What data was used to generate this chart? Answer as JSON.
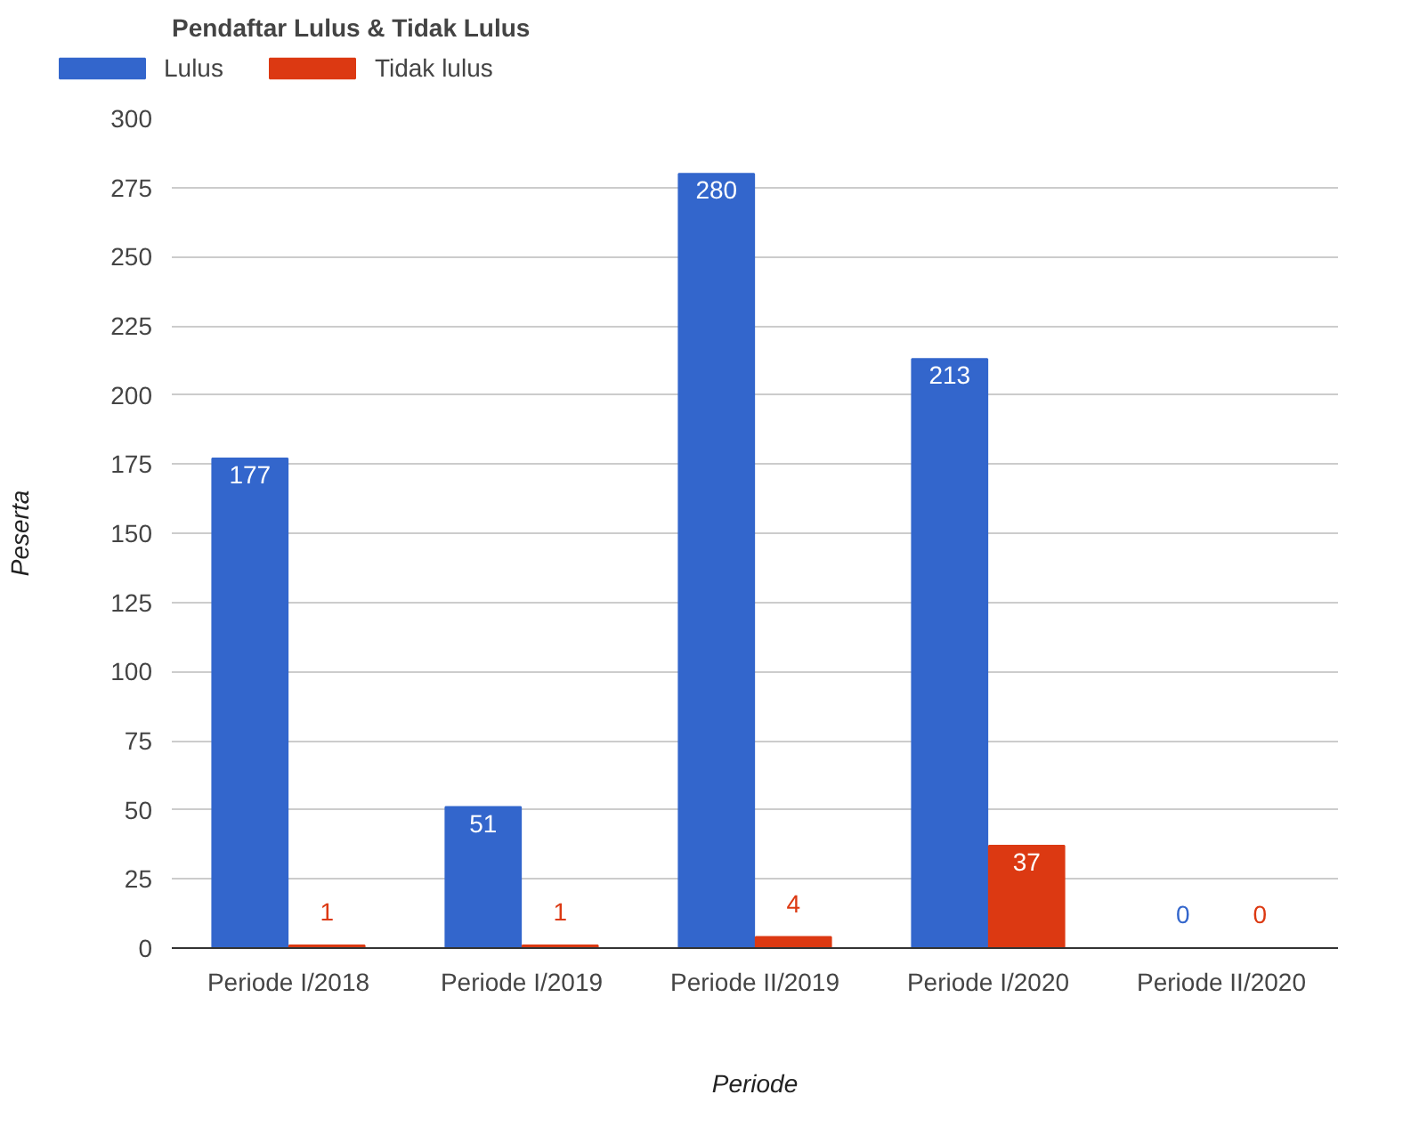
{
  "chart_data": {
    "type": "bar",
    "title": "Pendaftar Lulus & Tidak Lulus",
    "xlabel": "Periode",
    "ylabel": "Peserta",
    "categories": [
      "Periode I/2018",
      "Periode I/2019",
      "Periode II/2019",
      "Periode I/2020",
      "Periode II/2020"
    ],
    "series": [
      {
        "name": "Lulus",
        "color": "#3366cc",
        "values": [
          177,
          51,
          280,
          213,
          0
        ]
      },
      {
        "name": "Tidak lulus",
        "color": "#dc3912",
        "values": [
          1,
          1,
          4,
          37,
          0
        ]
      }
    ],
    "ylim": [
      0,
      300
    ],
    "yticks": [
      0,
      25,
      50,
      75,
      100,
      125,
      150,
      175,
      200,
      225,
      250,
      275,
      300
    ],
    "grid": "y",
    "legend": "top",
    "data_labels": true
  }
}
